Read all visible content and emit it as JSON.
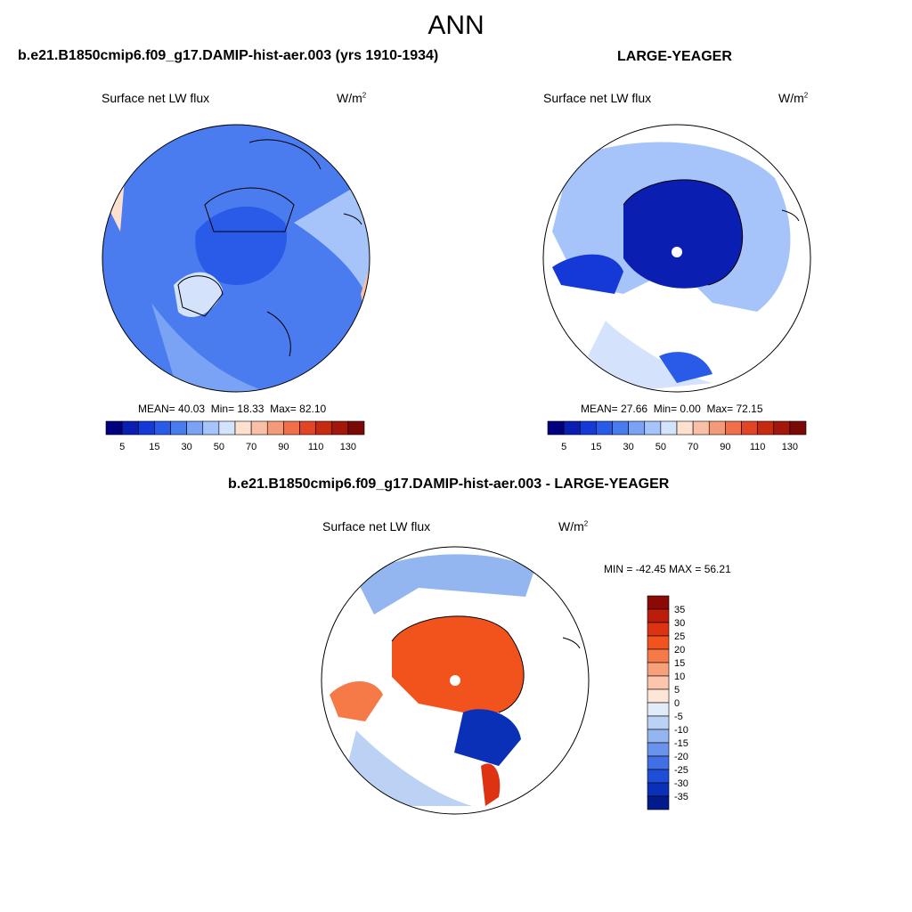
{
  "title": "ANN",
  "left_panel": {
    "case_title": "b.e21.B1850cmip6.f09_g17.DAMIP-hist-aer.003 (yrs 1910-1934)",
    "variable": "Surface net LW flux",
    "units_base": "W/m",
    "units_exp": "2",
    "stats": {
      "mean_label": "MEAN=",
      "mean": "40.03",
      "min_label": "Min=",
      "min": "18.33",
      "max_label": "Max=",
      "max": "82.10"
    }
  },
  "right_panel": {
    "case_title": "LARGE-YEAGER",
    "variable": "Surface net LW flux",
    "units_base": "W/m",
    "units_exp": "2",
    "stats": {
      "mean_label": "MEAN=",
      "mean": "27.66",
      "min_label": "Min=",
      "min": "0.00",
      "max_label": "Max=",
      "max": "72.15"
    }
  },
  "diff_panel": {
    "case_title": "b.e21.B1850cmip6.f09_g17.DAMIP-hist-aer.003 - LARGE-YEAGER",
    "variable": "Surface net LW flux",
    "units_base": "W/m",
    "units_exp": "2",
    "minmax": "MIN = -42.45 MAX =  56.21"
  },
  "abs_colorbar": {
    "tick_labels": [
      "5",
      "15",
      "30",
      "50",
      "70",
      "90",
      "110",
      "130"
    ],
    "colors": [
      "#00007f",
      "#0a1fb2",
      "#1539d6",
      "#2a5be8",
      "#4a7cf0",
      "#7aa2f5",
      "#a6c4f9",
      "#d4e3fb",
      "#fde0d0",
      "#f8c0a6",
      "#f59a78",
      "#f06e4c",
      "#e24427",
      "#c72a12",
      "#a3170a",
      "#7a0a05"
    ]
  },
  "diff_colorbar": {
    "tick_labels": [
      "35",
      "30",
      "25",
      "20",
      "15",
      "10",
      "5",
      "0",
      "-5",
      "-10",
      "-15",
      "-20",
      "-25",
      "-30",
      "-35"
    ],
    "colors": [
      "#8b0a05",
      "#bb1c0b",
      "#dd3312",
      "#f2531c",
      "#f57a47",
      "#f8a07a",
      "#fbc6ab",
      "#fde6d8",
      "#e2ecf8",
      "#bcd2f5",
      "#93b5f0",
      "#6a94ec",
      "#4170e6",
      "#1e4ed8",
      "#0b30b8",
      "#021a8c"
    ]
  },
  "colors": {
    "abs_left_base": "#4a7cf0",
    "abs_right_base": "#0a1fb2",
    "diff_base": "#f2531c"
  }
}
